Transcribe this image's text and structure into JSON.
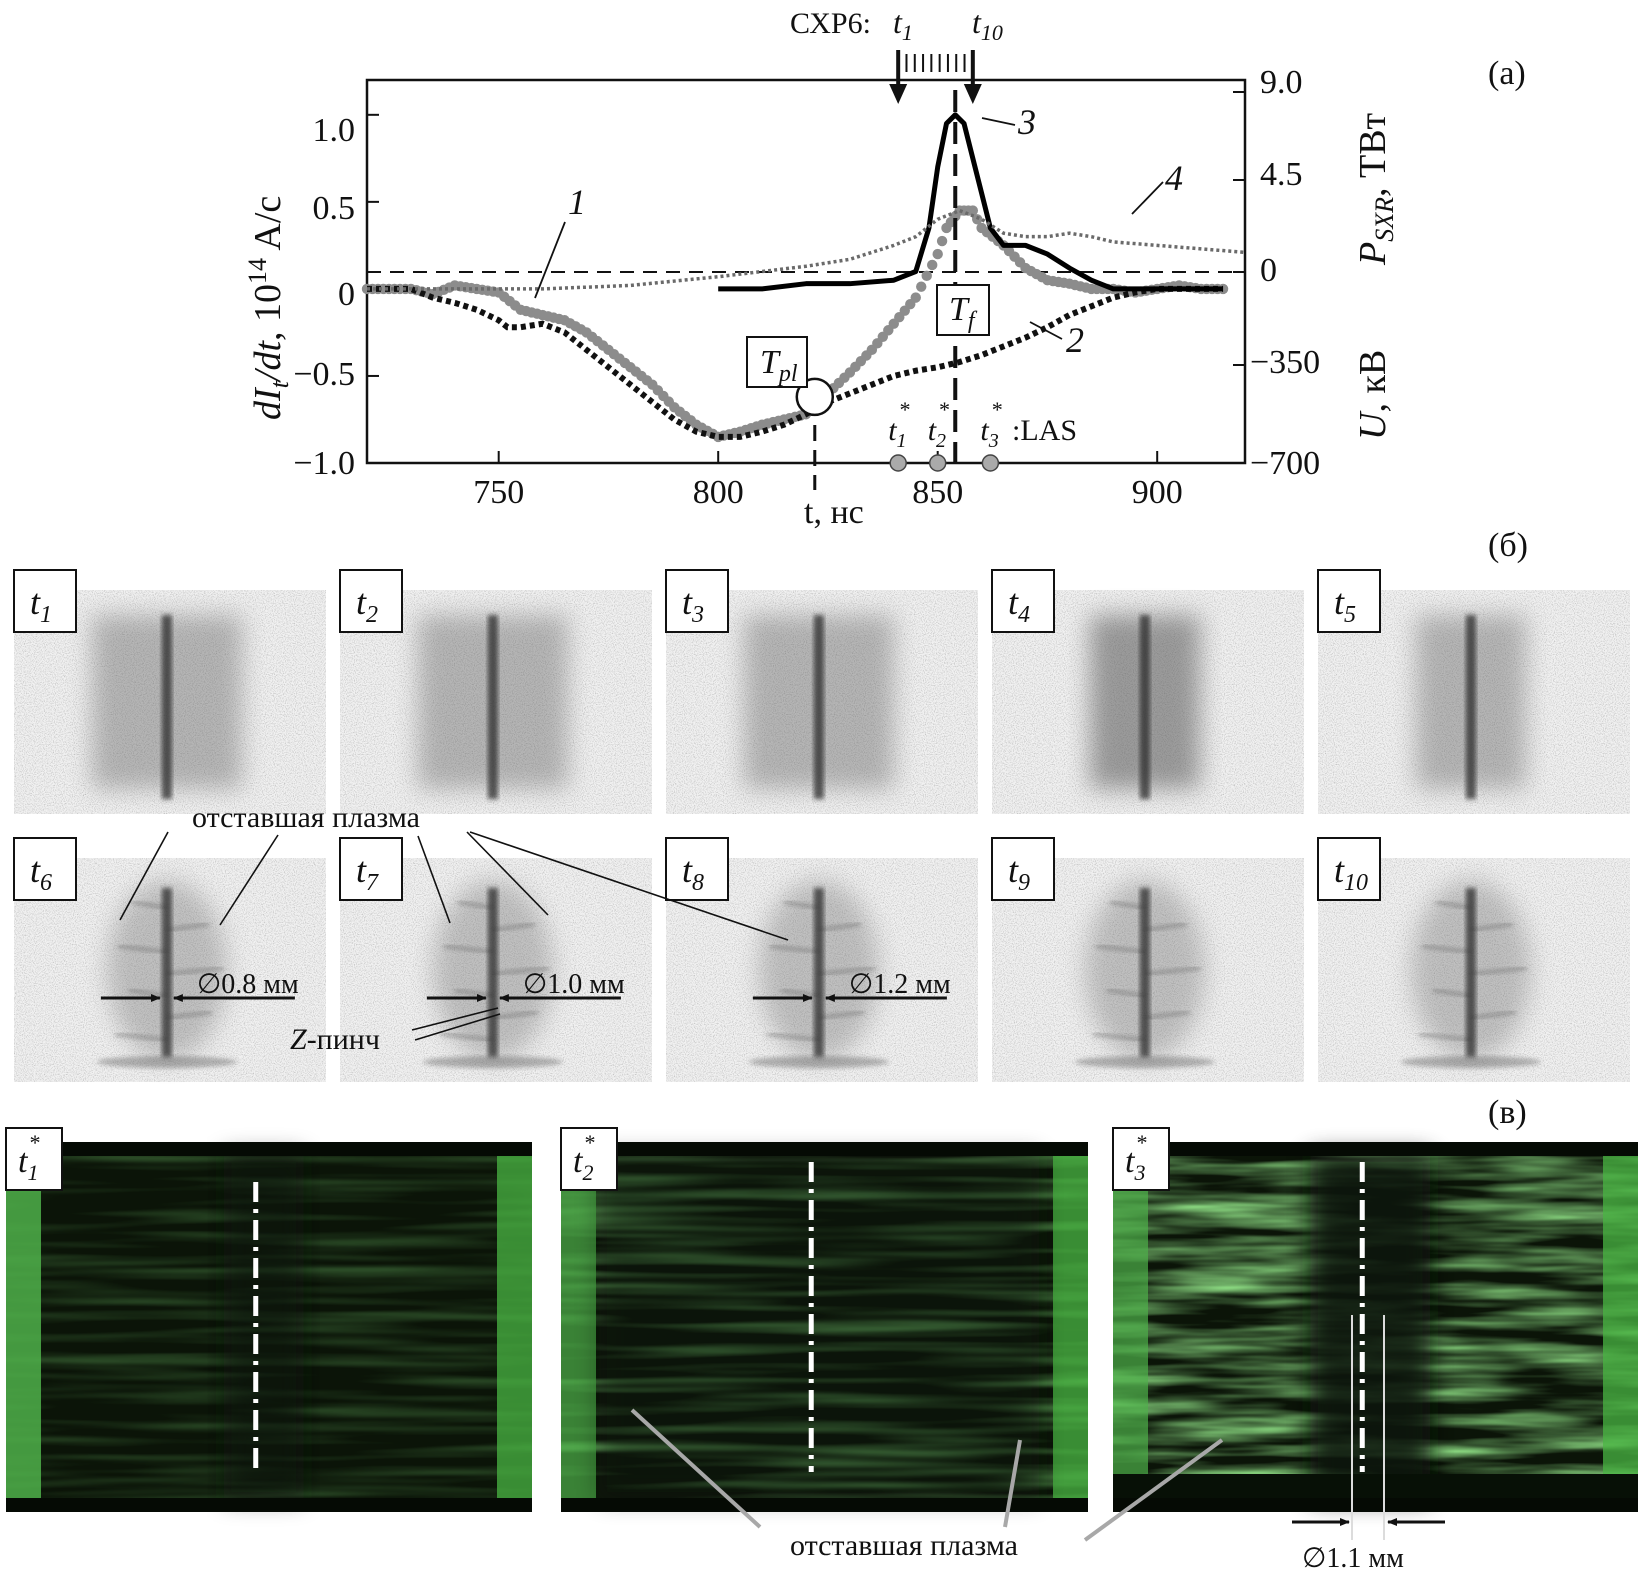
{
  "panel_labels": {
    "a": "(а)",
    "b": "(б)",
    "c": "(в)"
  },
  "chart_data": {
    "type": "line",
    "x": {
      "label": "t, нс",
      "ticks": [
        750,
        800,
        850,
        900
      ],
      "range": [
        720,
        920
      ]
    },
    "y_left": {
      "label": "dI_t/dt, 10^14 A/c",
      "ticks": [
        1.0,
        0.5,
        0,
        -0.5,
        -1.0
      ],
      "tick_labels": [
        "1.0",
        "0.5",
        "0",
        "−0.5",
        "−1.0"
      ],
      "range": [
        -1.0,
        1.2
      ]
    },
    "y_right_top": {
      "label": "P_SXR, ТВт",
      "ticks": [
        9.0,
        4.5,
        0
      ],
      "tick_labels": [
        "9.0",
        "4.5",
        "0"
      ]
    },
    "y_right_bottom": {
      "label": "U, кВ",
      "ticks": [
        -350,
        -700
      ],
      "tick_labels": [
        "−350",
        "−700"
      ]
    },
    "series": [
      {
        "name": "1",
        "style": "gray-dots",
        "color": "#8c8c8c",
        "x": [
          720,
          730,
          735,
          740,
          745,
          750,
          755,
          760,
          765,
          770,
          775,
          780,
          785,
          790,
          795,
          800,
          805,
          810,
          815,
          820,
          822,
          825,
          830,
          835,
          840,
          845,
          850,
          852,
          855,
          858,
          860,
          865,
          870,
          875,
          880,
          885,
          890,
          895,
          900,
          905,
          910,
          915
        ],
        "y": [
          0.0,
          0.0,
          -0.03,
          0.02,
          0.0,
          -0.02,
          -0.12,
          -0.15,
          -0.18,
          -0.25,
          -0.35,
          -0.45,
          -0.55,
          -0.68,
          -0.78,
          -0.85,
          -0.82,
          -0.78,
          -0.75,
          -0.72,
          -0.67,
          -0.6,
          -0.48,
          -0.35,
          -0.2,
          -0.05,
          0.2,
          0.35,
          0.45,
          0.45,
          0.35,
          0.25,
          0.12,
          0.05,
          0.03,
          0.0,
          0.0,
          -0.02,
          0.0,
          0.02,
          0.0,
          0.0
        ]
      },
      {
        "name": "2",
        "style": "black-dots",
        "color": "#111111",
        "x": [
          720,
          730,
          735,
          740,
          745,
          750,
          752,
          755,
          760,
          765,
          770,
          775,
          780,
          785,
          790,
          795,
          800,
          805,
          810,
          815,
          820,
          825,
          830,
          835,
          840,
          845,
          850,
          855,
          860,
          865,
          870,
          875,
          880,
          885,
          890,
          895,
          900,
          905,
          910,
          915
        ],
        "y": [
          0.0,
          0.0,
          -0.05,
          -0.08,
          -0.12,
          -0.18,
          -0.22,
          -0.22,
          -0.2,
          -0.25,
          -0.35,
          -0.45,
          -0.55,
          -0.65,
          -0.75,
          -0.82,
          -0.85,
          -0.85,
          -0.82,
          -0.78,
          -0.72,
          -0.65,
          -0.6,
          -0.55,
          -0.5,
          -0.47,
          -0.45,
          -0.42,
          -0.38,
          -0.33,
          -0.28,
          -0.22,
          -0.15,
          -0.1,
          -0.05,
          -0.02,
          0.0,
          0.0,
          0.0,
          0.0
        ]
      },
      {
        "name": "3",
        "style": "solid-thick",
        "color": "#000000",
        "x": [
          800,
          810,
          820,
          830,
          840,
          845,
          848,
          850,
          852,
          854,
          856,
          858,
          860,
          862,
          865,
          870,
          875,
          880,
          885,
          890,
          895,
          900,
          905,
          910,
          915
        ],
        "y": [
          0.0,
          0.0,
          0.03,
          0.03,
          0.05,
          0.1,
          0.35,
          0.7,
          0.95,
          1.0,
          0.95,
          0.75,
          0.55,
          0.35,
          0.25,
          0.25,
          0.2,
          0.12,
          0.05,
          0.0,
          0.0,
          0.0,
          0.0,
          0.0,
          0.0
        ]
      },
      {
        "name": "4",
        "style": "gray-dotted",
        "color": "#6a6a6a",
        "x": [
          720,
          740,
          760,
          780,
          800,
          810,
          820,
          830,
          840,
          845,
          850,
          855,
          860,
          865,
          870,
          875,
          880,
          885,
          890,
          900,
          910,
          920
        ],
        "y": [
          0.0,
          0.0,
          0.0,
          0.02,
          0.07,
          0.1,
          0.13,
          0.17,
          0.25,
          0.3,
          0.4,
          0.45,
          0.4,
          0.32,
          0.3,
          0.3,
          0.32,
          0.3,
          0.27,
          0.25,
          0.23,
          0.21
        ]
      }
    ],
    "annotations": {
      "series_tags": [
        "1",
        "2",
        "3",
        "4"
      ],
      "T_pl": {
        "label": "T",
        "sub": "pl",
        "x": 822
      },
      "T_f": {
        "label": "T",
        "sub": "f",
        "x": 854
      },
      "cxr": {
        "prefix": "СХР6:",
        "start": "t",
        "start_sub": "1",
        "end": "t",
        "end_sub": "10",
        "x_start": 841,
        "x_end": 858
      },
      "las": {
        "suffix": ":LAS",
        "times": [
          {
            "t": "t",
            "sub": "1",
            "x": 841
          },
          {
            "t": "t",
            "sub": "2",
            "x": 850
          },
          {
            "t": "t",
            "sub": "3",
            "x": 862
          }
        ]
      }
    }
  },
  "frames_b": [
    {
      "t": "t",
      "sub": "1"
    },
    {
      "t": "t",
      "sub": "2"
    },
    {
      "t": "t",
      "sub": "3"
    },
    {
      "t": "t",
      "sub": "4"
    },
    {
      "t": "t",
      "sub": "5"
    },
    {
      "t": "t",
      "sub": "6",
      "dia": "∅0.8 мм"
    },
    {
      "t": "t",
      "sub": "7",
      "dia": "∅1.0 мм"
    },
    {
      "t": "t",
      "sub": "8",
      "dia": "∅1.2 мм"
    },
    {
      "t": "t",
      "sub": "9"
    },
    {
      "t": "t",
      "sub": "10"
    }
  ],
  "labels_b": {
    "lagging": "отставшая плазма",
    "zpinch_z": "Z",
    "zpinch_rest": "-пинч"
  },
  "frames_c": [
    {
      "t": "t",
      "sub": "1",
      "sup": "*"
    },
    {
      "t": "t",
      "sub": "2",
      "sup": "*"
    },
    {
      "t": "t",
      "sub": "3",
      "sup": "*"
    }
  ],
  "labels_c": {
    "lagging": "отставшая плазма",
    "dia": "∅1.1 мм"
  },
  "colors": {
    "ink": "#111111",
    "gray_dots": "#8c8c8c",
    "green": "#3fbf3a",
    "dark": "#0b1408"
  }
}
